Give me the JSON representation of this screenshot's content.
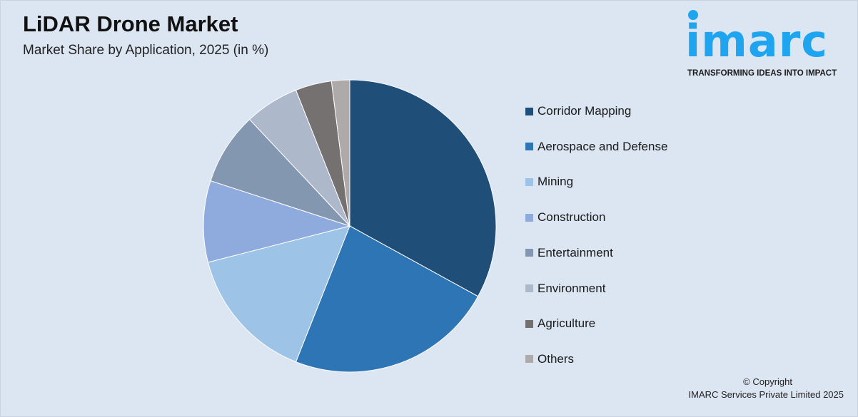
{
  "header": {
    "title": "LiDAR Drone Market",
    "subtitle": "Market Share by Application, 2025 (in %)"
  },
  "logo": {
    "word": "imarc",
    "tagline": "TRANSFORMING IDEAS INTO IMPACT",
    "color": "#1fa4f0"
  },
  "footer": {
    "copyright": "© Copyright",
    "company": "IMARC Services Private Limited 2025"
  },
  "chart_data": {
    "type": "pie",
    "title": "Market Share by Application, 2025 (in %)",
    "categories": [
      "Corridor Mapping",
      "Aerospace and Defense",
      "Mining",
      "Construction",
      "Entertainment",
      "Environment",
      "Agriculture",
      "Others"
    ],
    "values": [
      33,
      23,
      15,
      9,
      8,
      6,
      4,
      2
    ],
    "colors": [
      "#1f4e79",
      "#2e75b6",
      "#9dc3e6",
      "#8faadc",
      "#8497b0",
      "#adb9ca",
      "#767171",
      "#aeaaaa"
    ],
    "start": "12 o'clock, clockwise",
    "legend": "right"
  }
}
